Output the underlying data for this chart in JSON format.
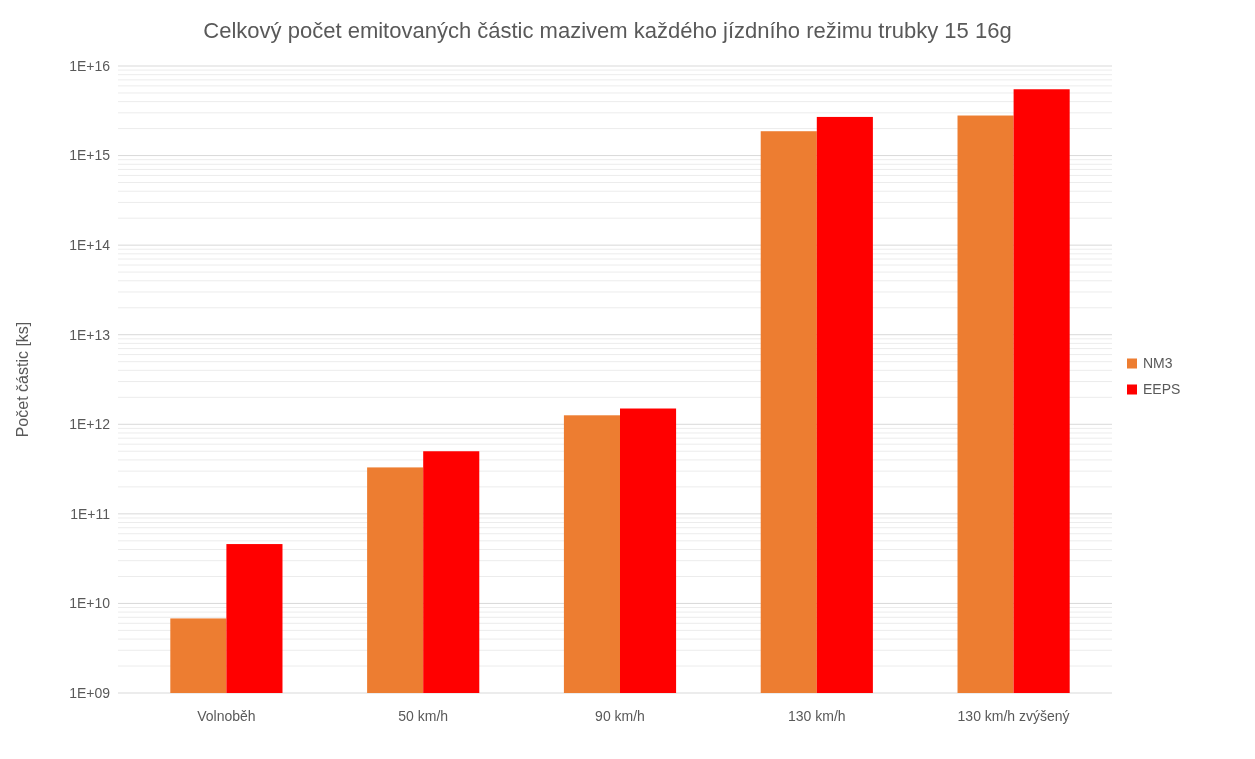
{
  "chart_data": {
    "type": "bar",
    "title": "Celkový počet emitovaných částic mazivem každého jízdního režimu trubky 15 16g",
    "ylabel": "Počet částic [ks]",
    "categories": [
      "Volnoběh",
      "50 km/h",
      "90 km/h",
      "130 km/h",
      "130 km/h zvýšený"
    ],
    "series": [
      {
        "name": "NM3",
        "color": "#ed7d31",
        "values": [
          6800000000.0,
          330000000000.0,
          1260000000000.0,
          1870000000000000.0,
          2800000000000000.0
        ]
      },
      {
        "name": "EEPS",
        "color": "#ff0000",
        "values": [
          46000000000.0,
          500000000000.0,
          1500000000000.0,
          2700000000000000.0,
          5500000000000000.0
        ]
      }
    ],
    "log": "y",
    "ylim": [
      1000000000.0,
      1e+16
    ],
    "yticks": [
      {
        "value": 1000000000.0,
        "label": "1E+09"
      },
      {
        "value": 10000000000.0,
        "label": "1E+10"
      },
      {
        "value": 100000000000.0,
        "label": "1E+11"
      },
      {
        "value": 1000000000000.0,
        "label": "1E+12"
      },
      {
        "value": 10000000000000.0,
        "label": "1E+13"
      },
      {
        "value": 100000000000000.0,
        "label": "1E+14"
      },
      {
        "value": 1000000000000000.0,
        "label": "1E+15"
      },
      {
        "value": 1e+16,
        "label": "1E+16"
      }
    ],
    "grid": "y",
    "legend": "right"
  }
}
